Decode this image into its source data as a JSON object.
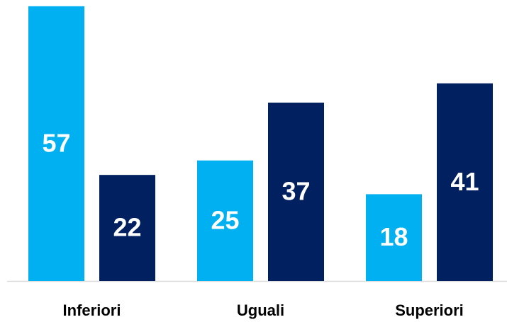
{
  "chart_data": {
    "type": "bar",
    "categories": [
      "Inferiori",
      "Uguali",
      "Superiori"
    ],
    "series": [
      {
        "color": "#00b0f0",
        "values": [
          57,
          25,
          18
        ]
      },
      {
        "color": "#002060",
        "values": [
          22,
          37,
          41
        ]
      }
    ],
    "ylim": [
      0,
      58
    ]
  }
}
